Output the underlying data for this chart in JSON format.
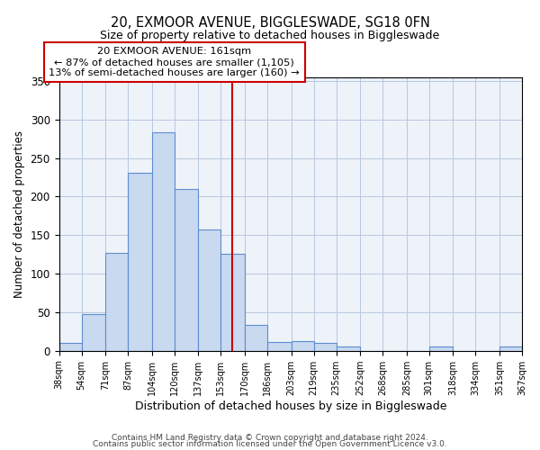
{
  "title": "20, EXMOOR AVENUE, BIGGLESWADE, SG18 0FN",
  "subtitle": "Size of property relative to detached houses in Biggleswade",
  "xlabel": "Distribution of detached houses by size in Biggleswade",
  "ylabel": "Number of detached properties",
  "bar_edges": [
    38,
    54,
    71,
    87,
    104,
    120,
    137,
    153,
    170,
    186,
    203,
    219,
    235,
    252,
    268,
    285,
    301,
    318,
    334,
    351,
    367
  ],
  "bar_heights": [
    10,
    48,
    127,
    231,
    283,
    210,
    157,
    126,
    34,
    11,
    12,
    10,
    6,
    0,
    0,
    0,
    5,
    0,
    0,
    6
  ],
  "bar_color": "#c9d9f0",
  "bar_edge_color": "#5b8ecf",
  "vline_x": 161,
  "vline_color": "#cc0000",
  "annotation_text": "20 EXMOOR AVENUE: 161sqm\n← 87% of detached houses are smaller (1,105)\n13% of semi-detached houses are larger (160) →",
  "annotation_box_color": "#ffffff",
  "annotation_box_edgecolor": "#cc0000",
  "ylim": [
    0,
    355
  ],
  "footnote1": "Contains HM Land Registry data © Crown copyright and database right 2024.",
  "footnote2": "Contains public sector information licensed under the Open Government Licence v3.0.",
  "background_color": "#eef2f9",
  "tick_labels": [
    "38sqm",
    "54sqm",
    "71sqm",
    "87sqm",
    "104sqm",
    "120sqm",
    "137sqm",
    "153sqm",
    "170sqm",
    "186sqm",
    "203sqm",
    "219sqm",
    "235sqm",
    "252sqm",
    "268sqm",
    "285sqm",
    "301sqm",
    "318sqm",
    "334sqm",
    "351sqm",
    "367sqm"
  ],
  "yticks": [
    0,
    50,
    100,
    150,
    200,
    250,
    300,
    350
  ]
}
